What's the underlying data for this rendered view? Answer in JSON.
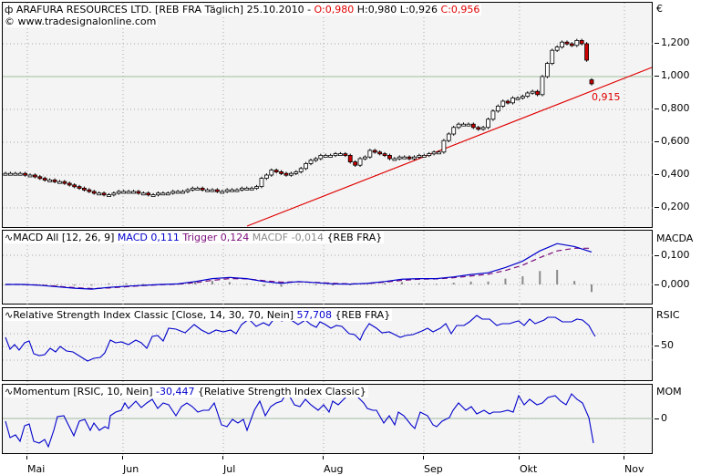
{
  "header": {
    "symbol_icon": "candlestick-icon",
    "instrument": "ARAFURA RESOURCES LTD. [REB FRA  Täglich] 25.10.2010 -",
    "open": "O:0,980",
    "high": "H:0,980",
    "low": "L:0,926",
    "close": "C:0,956",
    "copyright": "© www.tradesignalonline.com",
    "currency": "€"
  },
  "price_panel": {
    "y_labels": [
      "1,200",
      "1,000",
      "0,800",
      "0,600",
      "0,400",
      "0,200"
    ],
    "last_value_label": "0,915"
  },
  "macd_panel": {
    "prefix": "MACD All [12, 26, 9]",
    "macd": "MACD 0,111",
    "trigger": "Trigger 0,124",
    "macdf": "MACDF -0,014",
    "source": "{REB FRA}",
    "axis_name": "MACDA",
    "y_labels": [
      "0,100",
      "0,000"
    ]
  },
  "rsi_panel": {
    "prefix": "Relative Strength Index Classic [Close, 14, 30, 70, Nein]",
    "value": "57,708",
    "source": "{REB FRA}",
    "axis_name": "RSIC",
    "y_labels": [
      "50"
    ]
  },
  "mom_panel": {
    "prefix": "Momentum [RSIC, 10, Nein]",
    "value": "-30,447",
    "source": "{Relative Strength Index Classic}",
    "axis_name": "MOM",
    "y_labels": [
      "0"
    ]
  },
  "x_axis": {
    "months": [
      "Mai",
      "Jun",
      "Jul",
      "Aug",
      "Sep",
      "Okt",
      "Nov"
    ]
  },
  "colors": {
    "panel_bg": "#f4f4f4",
    "grid": "#a8a8a8",
    "trendline": "#e00000",
    "bear_candle": "#cc0000",
    "macd_line": "#0000cc",
    "trigger_line": "#7a0d7a",
    "macdf_hist": "#8a8a8a",
    "indicator_line": "#0000cc",
    "reference_line": "#9fc09f"
  },
  "chart_data": [
    {
      "type": "candlestick",
      "title": "ARAFURA RESOURCES LTD. [REB FRA Täglich] 25.10.2010",
      "ylabel": "€",
      "ylim": [
        0.1,
        1.35
      ],
      "x_ticks": [
        "Mai",
        "Jun",
        "Jul",
        "Aug",
        "Sep",
        "Okt",
        "Nov"
      ],
      "last_ohlc": {
        "open": 0.98,
        "high": 0.98,
        "low": 0.926,
        "close": 0.956
      },
      "close_approx": [
        0.41,
        0.41,
        0.41,
        0.41,
        0.4,
        0.4,
        0.39,
        0.38,
        0.37,
        0.37,
        0.36,
        0.36,
        0.35,
        0.34,
        0.33,
        0.32,
        0.31,
        0.3,
        0.29,
        0.29,
        0.28,
        0.28,
        0.29,
        0.3,
        0.3,
        0.3,
        0.3,
        0.29,
        0.29,
        0.28,
        0.28,
        0.29,
        0.29,
        0.29,
        0.3,
        0.3,
        0.3,
        0.31,
        0.32,
        0.32,
        0.31,
        0.31,
        0.31,
        0.3,
        0.3,
        0.31,
        0.31,
        0.31,
        0.32,
        0.32,
        0.32,
        0.33,
        0.38,
        0.4,
        0.43,
        0.42,
        0.41,
        0.4,
        0.41,
        0.42,
        0.44,
        0.47,
        0.49,
        0.5,
        0.52,
        0.52,
        0.52,
        0.53,
        0.53,
        0.52,
        0.48,
        0.46,
        0.5,
        0.51,
        0.55,
        0.54,
        0.53,
        0.52,
        0.5,
        0.5,
        0.51,
        0.51,
        0.5,
        0.51,
        0.52,
        0.52,
        0.53,
        0.54,
        0.54,
        0.61,
        0.65,
        0.69,
        0.71,
        0.71,
        0.71,
        0.69,
        0.68,
        0.69,
        0.74,
        0.79,
        0.82,
        0.85,
        0.84,
        0.87,
        0.87,
        0.88,
        0.9,
        0.91,
        0.89,
        1.0,
        1.08,
        1.16,
        1.18,
        1.21,
        1.2,
        1.19,
        1.22,
        1.2,
        1.1,
        0.956
      ],
      "annotations": [
        {
          "text": "0,915",
          "value": 0.915
        }
      ],
      "trendline": {
        "from": {
          "x": "Jul 01",
          "y": 0.12
        },
        "to": {
          "x": "Nov 05",
          "y": 1.06
        }
      },
      "reference_line": 1.0
    },
    {
      "type": "line",
      "title": "MACD All [12, 26, 9]",
      "series": [
        {
          "name": "MACD",
          "last": 0.111,
          "values_approx": [
            0.0,
            0.0,
            -0.003,
            -0.008,
            -0.013,
            -0.016,
            -0.01,
            -0.006,
            -0.003,
            0.0,
            0.002,
            0.01,
            0.02,
            0.024,
            0.02,
            0.01,
            0.004,
            0.01,
            0.006,
            0.002,
            0.001,
            0.004,
            0.01,
            0.018,
            0.02,
            0.02,
            0.026,
            0.034,
            0.04,
            0.058,
            0.08,
            0.115,
            0.14,
            0.13,
            0.111
          ]
        },
        {
          "name": "Trigger",
          "last": 0.124,
          "values_approx": [
            0.0,
            0.0,
            -0.002,
            -0.006,
            -0.011,
            -0.014,
            -0.012,
            -0.008,
            -0.004,
            -0.001,
            0.001,
            0.006,
            0.014,
            0.02,
            0.019,
            0.013,
            0.008,
            0.009,
            0.007,
            0.004,
            0.002,
            0.003,
            0.008,
            0.014,
            0.018,
            0.019,
            0.023,
            0.029,
            0.035,
            0.048,
            0.066,
            0.092,
            0.115,
            0.124,
            0.124
          ]
        },
        {
          "name": "MACDF",
          "last": -0.014
        }
      ],
      "ylabel": "MACDA",
      "y_ticks": [
        0.0,
        0.1
      ]
    },
    {
      "type": "line",
      "title": "Relative Strength Index Classic [Close, 14, 30, 70, Nein]",
      "series": [
        {
          "name": "RSIC",
          "last": 57.708
        }
      ],
      "ylabel": "RSIC",
      "y_ticks": [
        50
      ],
      "reference_lines": [
        30,
        50,
        70
      ]
    },
    {
      "type": "line",
      "title": "Momentum [RSIC, 10, Nein]",
      "series": [
        {
          "name": "MOM",
          "last": -30.447
        }
      ],
      "ylabel": "MOM",
      "y_ticks": [
        0
      ],
      "reference_line": 0
    }
  ]
}
